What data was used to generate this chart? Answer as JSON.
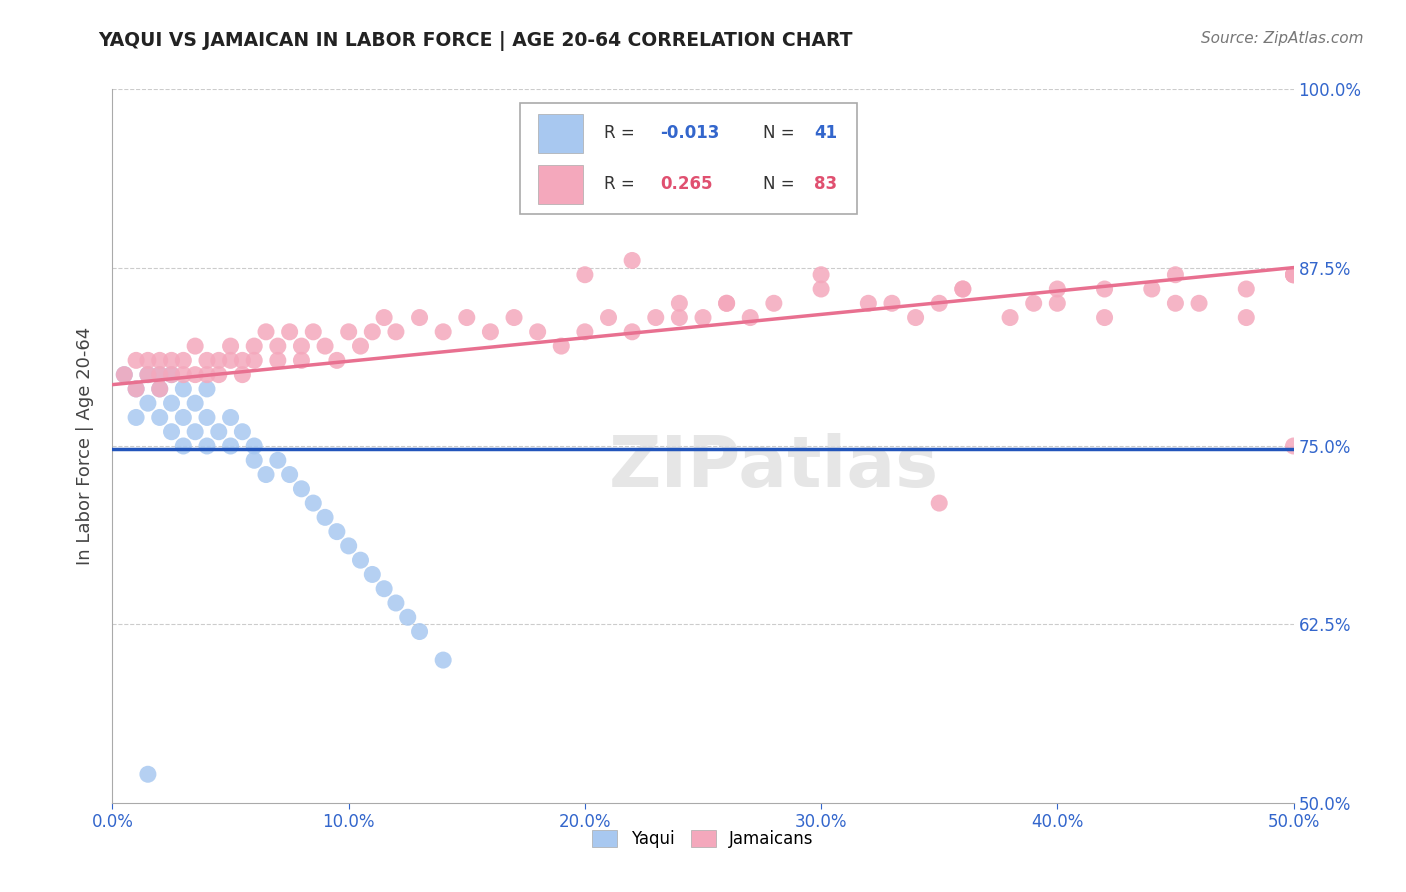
{
  "title": "YAQUI VS JAMAICAN IN LABOR FORCE | AGE 20-64 CORRELATION CHART",
  "source": "Source: ZipAtlas.com",
  "ylabel": "In Labor Force | Age 20-64",
  "xlim": [
    0.0,
    0.5
  ],
  "ylim": [
    0.5,
    1.0
  ],
  "yticks": [
    0.5,
    0.625,
    0.75,
    0.875,
    1.0
  ],
  "ytick_labels": [
    "50.0%",
    "62.5%",
    "75.0%",
    "87.5%",
    "100.0%"
  ],
  "xticks": [
    0.0,
    0.1,
    0.2,
    0.3,
    0.4,
    0.5
  ],
  "xtick_labels": [
    "0.0%",
    "10.0%",
    "20.0%",
    "30.0%",
    "40.0%",
    "50.0%"
  ],
  "blue_color": "#A8C8F0",
  "pink_color": "#F4A8BC",
  "blue_line_color": "#2255BB",
  "pink_line_color": "#E87090",
  "R_blue": -0.013,
  "N_blue": 41,
  "R_pink": 0.265,
  "N_pink": 83,
  "blue_scatter_x": [
    0.005,
    0.01,
    0.01,
    0.015,
    0.015,
    0.02,
    0.02,
    0.02,
    0.025,
    0.025,
    0.025,
    0.03,
    0.03,
    0.03,
    0.035,
    0.035,
    0.04,
    0.04,
    0.04,
    0.045,
    0.05,
    0.05,
    0.055,
    0.06,
    0.06,
    0.065,
    0.07,
    0.075,
    0.08,
    0.085,
    0.09,
    0.095,
    0.1,
    0.105,
    0.11,
    0.115,
    0.12,
    0.125,
    0.13,
    0.14,
    0.015
  ],
  "blue_scatter_y": [
    0.8,
    0.79,
    0.77,
    0.8,
    0.78,
    0.8,
    0.79,
    0.77,
    0.8,
    0.78,
    0.76,
    0.79,
    0.77,
    0.75,
    0.78,
    0.76,
    0.79,
    0.77,
    0.75,
    0.76,
    0.77,
    0.75,
    0.76,
    0.75,
    0.74,
    0.73,
    0.74,
    0.73,
    0.72,
    0.71,
    0.7,
    0.69,
    0.68,
    0.67,
    0.66,
    0.65,
    0.64,
    0.63,
    0.62,
    0.6,
    0.52
  ],
  "pink_scatter_x": [
    0.005,
    0.01,
    0.01,
    0.015,
    0.015,
    0.02,
    0.02,
    0.02,
    0.025,
    0.025,
    0.03,
    0.03,
    0.035,
    0.035,
    0.04,
    0.04,
    0.045,
    0.045,
    0.05,
    0.05,
    0.055,
    0.055,
    0.06,
    0.06,
    0.065,
    0.07,
    0.07,
    0.075,
    0.08,
    0.08,
    0.085,
    0.09,
    0.095,
    0.1,
    0.105,
    0.11,
    0.115,
    0.12,
    0.13,
    0.14,
    0.15,
    0.16,
    0.17,
    0.18,
    0.19,
    0.2,
    0.21,
    0.22,
    0.23,
    0.24,
    0.25,
    0.26,
    0.27,
    0.28,
    0.3,
    0.32,
    0.34,
    0.35,
    0.36,
    0.38,
    0.4,
    0.42,
    0.44,
    0.46,
    0.48,
    0.5,
    0.2,
    0.22,
    0.24,
    0.26,
    0.3,
    0.33,
    0.36,
    0.39,
    0.42,
    0.45,
    0.48,
    0.5,
    0.35,
    0.4,
    0.45,
    0.5,
    0.5
  ],
  "pink_scatter_y": [
    0.8,
    0.81,
    0.79,
    0.8,
    0.81,
    0.8,
    0.81,
    0.79,
    0.8,
    0.81,
    0.8,
    0.81,
    0.8,
    0.82,
    0.81,
    0.8,
    0.81,
    0.8,
    0.82,
    0.81,
    0.81,
    0.8,
    0.82,
    0.81,
    0.83,
    0.81,
    0.82,
    0.83,
    0.82,
    0.81,
    0.83,
    0.82,
    0.81,
    0.83,
    0.82,
    0.83,
    0.84,
    0.83,
    0.84,
    0.83,
    0.84,
    0.83,
    0.84,
    0.83,
    0.82,
    0.83,
    0.84,
    0.83,
    0.84,
    0.85,
    0.84,
    0.85,
    0.84,
    0.85,
    0.86,
    0.85,
    0.84,
    0.85,
    0.86,
    0.84,
    0.85,
    0.84,
    0.86,
    0.85,
    0.84,
    0.87,
    0.87,
    0.88,
    0.84,
    0.85,
    0.87,
    0.85,
    0.86,
    0.85,
    0.86,
    0.87,
    0.86,
    0.87,
    0.71,
    0.86,
    0.85,
    0.87,
    0.75
  ]
}
